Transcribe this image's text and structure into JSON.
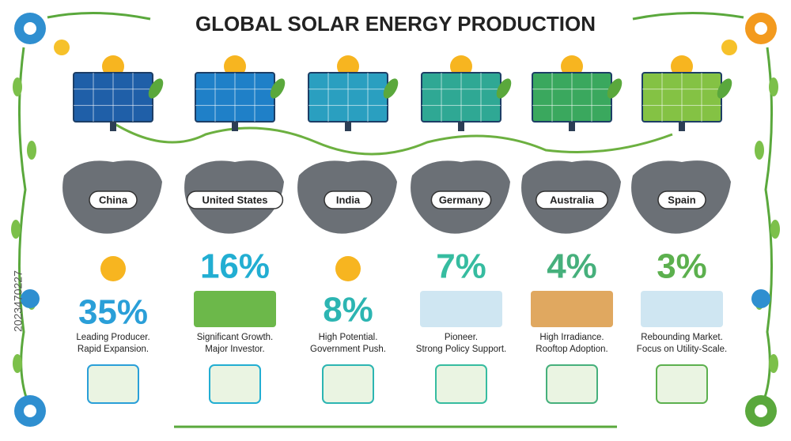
{
  "header": {
    "title": "GLOBAL SOLAR ENERGY PRODUCTION"
  },
  "watermark_id": "2023470227",
  "countries": [
    {
      "name": "China",
      "share": "35%",
      "lines": [
        "Leading Producer.",
        "Rapid Expansion."
      ]
    },
    {
      "name": "United States",
      "share": "16%",
      "lines": [
        "Significant Growth.",
        "Major Investor."
      ]
    },
    {
      "name": "India",
      "share": "8%",
      "lines": [
        "High Potential.",
        "Government Push."
      ]
    },
    {
      "name": "Germany",
      "share": "7%",
      "lines": [
        "Pioneer.",
        "Strong Policy Support."
      ]
    },
    {
      "name": "Australia",
      "share": "4%",
      "lines": [
        "High Irradiance.",
        "Rooftop Adoption."
      ]
    },
    {
      "name": "Spain",
      "share": "3%",
      "lines": [
        "Rebounding Market.",
        "Focus on Utility-Scale."
      ]
    }
  ]
}
